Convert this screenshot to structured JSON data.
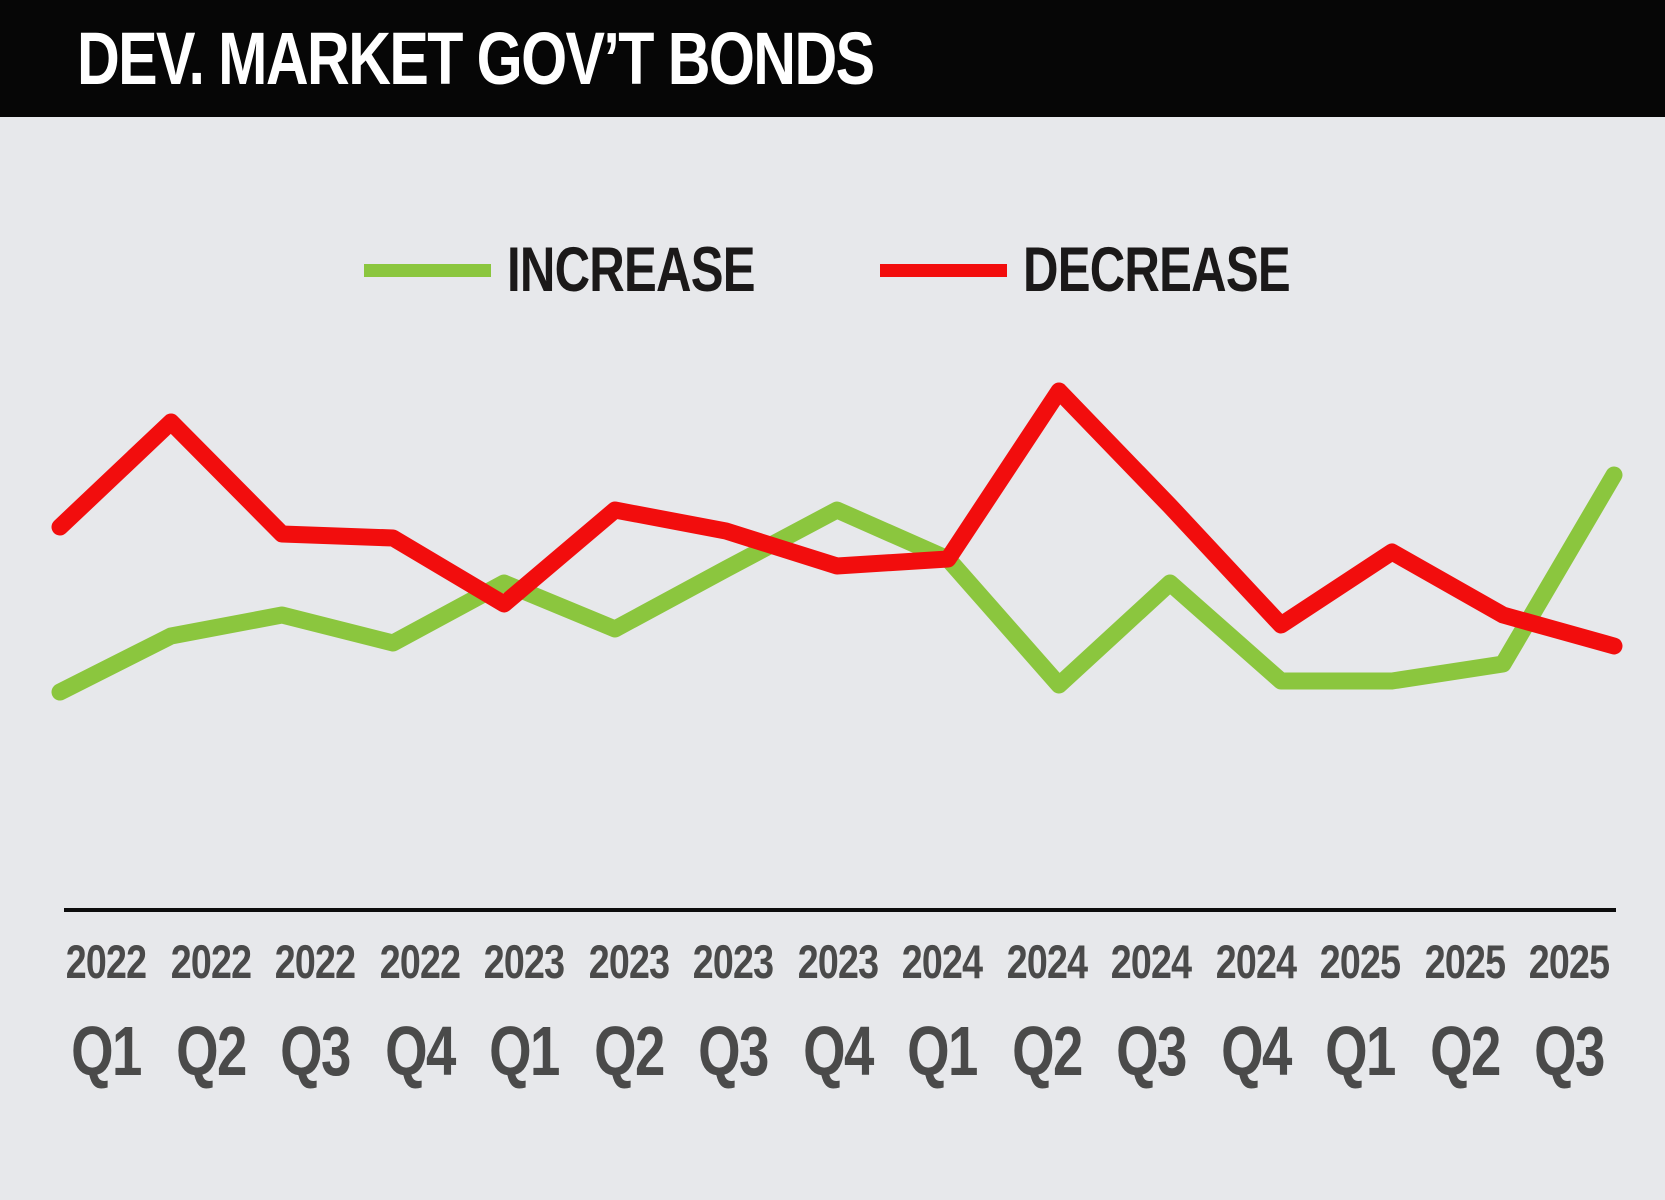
{
  "header": {
    "title": "DEV. MARKET GOV’T BONDS"
  },
  "legend": {
    "items": [
      {
        "label": "INCREASE",
        "color": "#8BC63E"
      },
      {
        "label": "DECREASE",
        "color": "#F20D0D"
      }
    ]
  },
  "chart_data": {
    "type": "line",
    "title": "DEV. MARKET GOV’T BONDS",
    "xlabel": "",
    "ylabel": "",
    "ylim": [
      0,
      100
    ],
    "y_axis_visible": false,
    "grid": false,
    "legend_position": "top-center",
    "categories": [
      {
        "year": "2022",
        "quarter": "Q1"
      },
      {
        "year": "2022",
        "quarter": "Q2"
      },
      {
        "year": "2022",
        "quarter": "Q3"
      },
      {
        "year": "2022",
        "quarter": "Q4"
      },
      {
        "year": "2023",
        "quarter": "Q1"
      },
      {
        "year": "2023",
        "quarter": "Q2"
      },
      {
        "year": "2023",
        "quarter": "Q3"
      },
      {
        "year": "2023",
        "quarter": "Q4"
      },
      {
        "year": "2024",
        "quarter": "Q1"
      },
      {
        "year": "2024",
        "quarter": "Q2"
      },
      {
        "year": "2024",
        "quarter": "Q3"
      },
      {
        "year": "2024",
        "quarter": "Q4"
      },
      {
        "year": "2025",
        "quarter": "Q1"
      },
      {
        "year": "2025",
        "quarter": "Q2"
      },
      {
        "year": "2025",
        "quarter": "Q3"
      }
    ],
    "series": [
      {
        "name": "INCREASE",
        "color": "#8BC63E",
        "values": [
          11,
          27,
          33,
          25,
          42,
          29,
          46,
          63,
          49,
          13,
          42,
          14,
          14,
          19,
          73
        ]
      },
      {
        "name": "DECREASE",
        "color": "#F20D0D",
        "values": [
          58,
          88,
          56,
          55,
          36,
          63,
          57,
          47,
          49,
          97,
          64,
          30,
          51,
          33,
          24
        ]
      }
    ]
  }
}
